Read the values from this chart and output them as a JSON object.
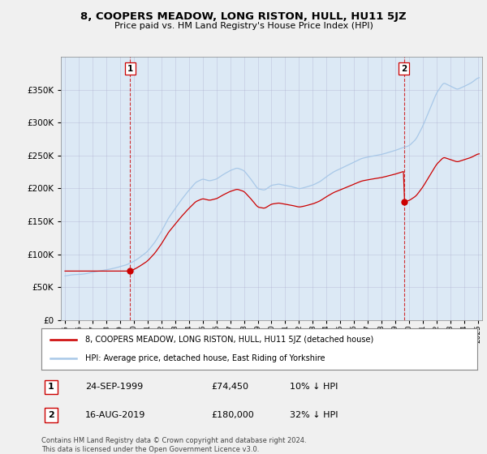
{
  "title": "8, COOPERS MEADOW, LONG RISTON, HULL, HU11 5JZ",
  "subtitle": "Price paid vs. HM Land Registry's House Price Index (HPI)",
  "legend_line1": "8, COOPERS MEADOW, LONG RISTON, HULL, HU11 5JZ (detached house)",
  "legend_line2": "HPI: Average price, detached house, East Riding of Yorkshire",
  "footer": "Contains HM Land Registry data © Crown copyright and database right 2024.\nThis data is licensed under the Open Government Licence v3.0.",
  "sale1_label": "1",
  "sale1_date": "24-SEP-1999",
  "sale1_price": "£74,450",
  "sale1_hpi": "10% ↓ HPI",
  "sale1_year": 1999.73,
  "sale1_value": 74450,
  "sale2_label": "2",
  "sale2_date": "16-AUG-2019",
  "sale2_price": "£180,000",
  "sale2_hpi": "32% ↓ HPI",
  "sale2_year": 2019.62,
  "sale2_value": 180000,
  "hpi_color": "#a8c8e8",
  "sale_color": "#cc0000",
  "marker_color": "#cc0000",
  "vline_color": "#cc0000",
  "bg_color": "#f0f0f0",
  "plot_bg": "#dce9f5",
  "ylim": [
    0,
    400000
  ],
  "xlim_start": 1994.7,
  "xlim_end": 2025.3,
  "yticks": [
    0,
    50000,
    100000,
    150000,
    200000,
    250000,
    300000,
    350000
  ],
  "xtick_years": [
    1995,
    1996,
    1997,
    1998,
    1999,
    2000,
    2001,
    2002,
    2003,
    2004,
    2005,
    2006,
    2007,
    2008,
    2009,
    2010,
    2011,
    2012,
    2013,
    2014,
    2015,
    2016,
    2017,
    2018,
    2019,
    2020,
    2021,
    2022,
    2023,
    2024,
    2025
  ]
}
